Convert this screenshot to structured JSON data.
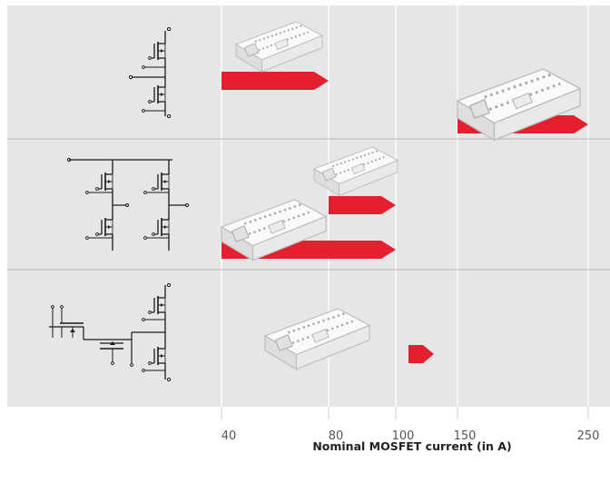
{
  "chart_data": {
    "type": "bar",
    "title": "",
    "xlabel": "Nominal MOSFET current (in A)",
    "ylabel": "",
    "x_scale": "categorical-nonlinear",
    "x_ticks": [
      40,
      80,
      100,
      150,
      250
    ],
    "x_tick_labels": [
      "40",
      "80",
      "100",
      "150",
      "250"
    ],
    "rows": [
      {
        "topology": "half-bridge",
        "bars": [
          {
            "from": 40,
            "to": 80
          },
          {
            "from": 150,
            "to": 250
          }
        ]
      },
      {
        "topology": "six-pack",
        "bars": [
          {
            "from": 80,
            "to": 100
          },
          {
            "from": 40,
            "to": 100
          }
        ]
      },
      {
        "topology": "boost-chopper",
        "bars": [
          {
            "from": 100,
            "to": 100
          }
        ]
      }
    ],
    "grid": true,
    "legend": "none"
  },
  "colors": {
    "bar": "#e4202e",
    "panel": "#e6e6e8",
    "grid": "#ffffff",
    "row_divider": "#b6b6ba",
    "tick_text": "#555555",
    "module": "#f4f4f4",
    "schematic": "#1a1a1a"
  },
  "icons": {
    "row_1": "half-bridge-schematic-icon",
    "row_2": "six-pack-schematic-icon",
    "row_3": "boost-chopper-schematic-icon",
    "module": "power-module-photo-icon"
  }
}
